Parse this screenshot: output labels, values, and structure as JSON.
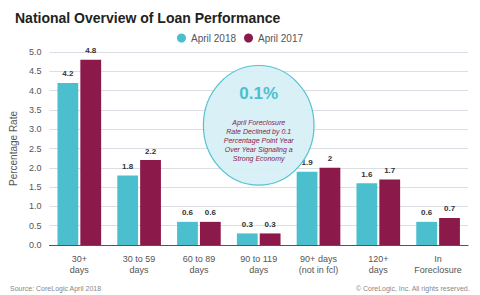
{
  "chart_data": {
    "type": "bar",
    "title": "National Overview of Loan Performance",
    "categories": [
      "30+\ndays",
      "30 to 59\ndays",
      "60 to 89\ndays",
      "90 to 119\ndays",
      "90+ days\n(not in fcl)",
      "120+\ndays",
      "In\nForeclosure"
    ],
    "series": [
      {
        "name": "April 2018",
        "color": "#4BBFCE",
        "values": [
          4.2,
          1.8,
          0.6,
          0.3,
          1.9,
          1.6,
          0.6
        ]
      },
      {
        "name": "April 2017",
        "color": "#8B1A4A",
        "values": [
          4.8,
          2.2,
          0.6,
          0.3,
          2.0,
          1.7,
          0.7
        ]
      }
    ],
    "ylabel": "Percentage Rate",
    "ylim": [
      0,
      5.0
    ],
    "yticks": [
      {
        "value": 0,
        "label": "0.0"
      },
      0.5,
      {
        "value": 1,
        "label": "1.0"
      },
      1.5,
      {
        "value": 2,
        "label": "2.0"
      },
      2.5,
      {
        "value": 3,
        "label": "3.0"
      },
      3.5,
      {
        "value": 4,
        "label": "4.0"
      },
      4.5,
      {
        "value": 5,
        "label": "5.0"
      }
    ],
    "grid": true,
    "legend": "top",
    "data_labels": true,
    "annotations": [
      {
        "text": "0.1%",
        "color": "#4BBFCE"
      },
      {
        "text": "April Foreclosure\nRate Declined by 0.1\nPercentage Point Year\nOver Year Signaling a\nStrong Economy",
        "color": "#8B1A4A"
      },
      {
        "text": "Source: CoreLogic April 2018"
      },
      {
        "text": "© CoreLogic, Inc. All rights reserved."
      }
    ]
  }
}
